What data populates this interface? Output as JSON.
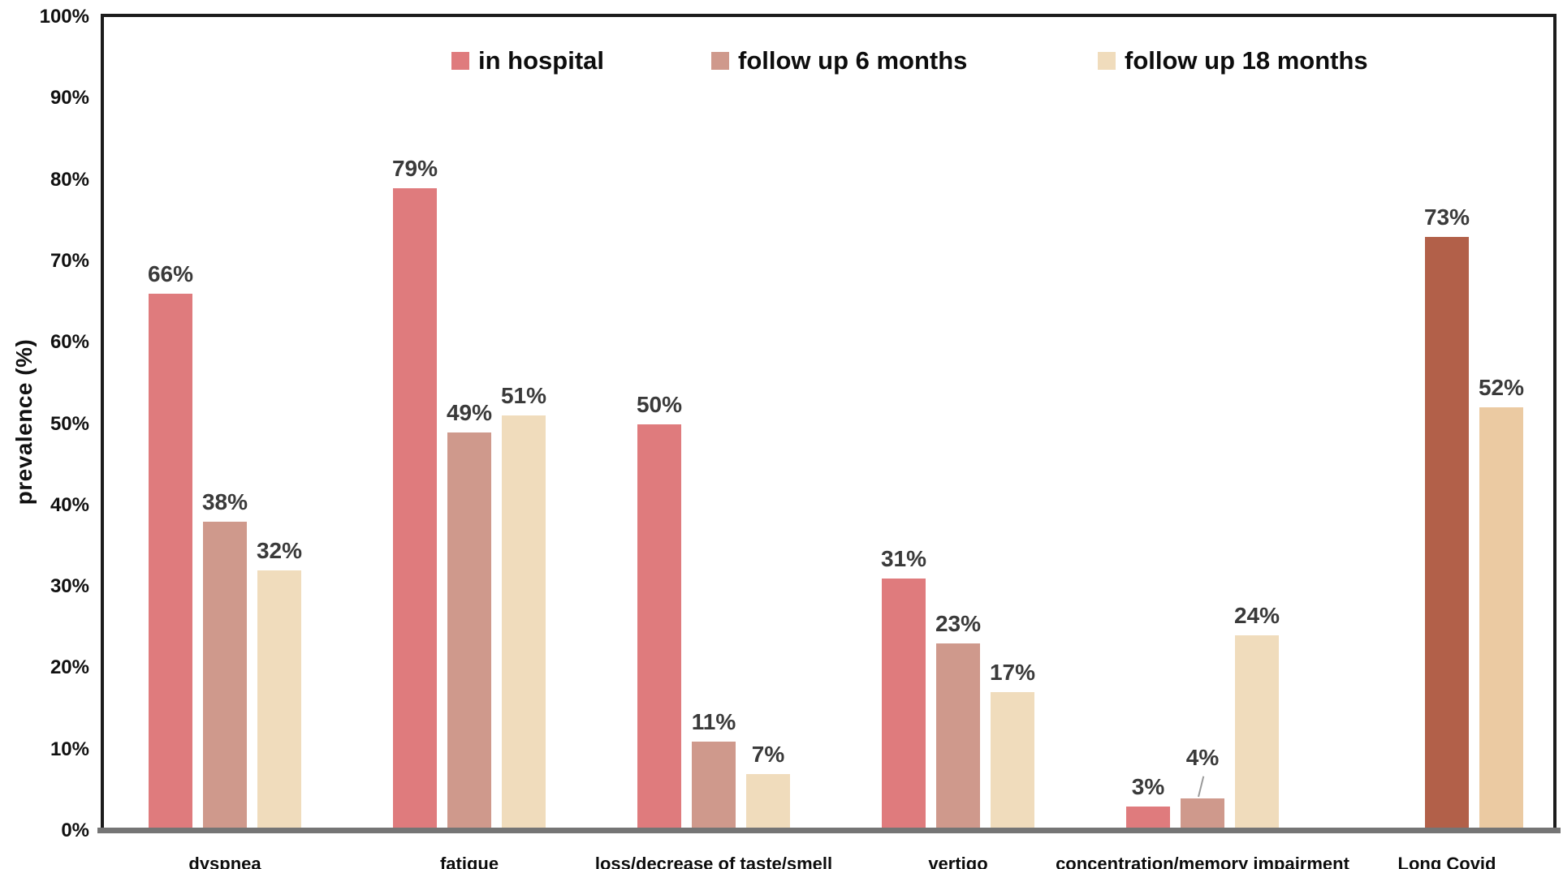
{
  "chart_data": {
    "type": "bar",
    "ylabel": "prevalence (%)",
    "ylim": [
      0,
      100
    ],
    "ytick_step": 10,
    "ytick_labels": [
      "0%",
      "10%",
      "20%",
      "30%",
      "40%",
      "50%",
      "60%",
      "70%",
      "80%",
      "90%",
      "100%"
    ],
    "grid": false,
    "legend_position": "top-center",
    "plot_frame_color": "#1c1c1c",
    "x_axis_color": "#757575",
    "value_label_color": "#3a3a3a",
    "series": [
      {
        "name": "in hospital",
        "color": "#df7b7d"
      },
      {
        "name": "follow up 6 months",
        "color": "#cf998c"
      },
      {
        "name": "follow up 18 months",
        "color": "#f0dcbc"
      }
    ],
    "categories": [
      "dyspnea",
      "fatigue",
      "loss/decrease of taste/smell",
      "vertigo",
      "concentration/memory impairment",
      "Long Covid"
    ],
    "groups": [
      {
        "category": "dyspnea",
        "bars": [
          {
            "series": "in hospital",
            "slot": 0,
            "value": 66,
            "label": "66%"
          },
          {
            "series": "follow up 6 months",
            "slot": 1,
            "value": 38,
            "label": "38%"
          },
          {
            "series": "follow up 18 months",
            "slot": 2,
            "value": 32,
            "label": "32%"
          }
        ]
      },
      {
        "category": "fatigue",
        "bars": [
          {
            "series": "in hospital",
            "slot": 0,
            "value": 79,
            "label": "79%"
          },
          {
            "series": "follow up 6 months",
            "slot": 1,
            "value": 49,
            "label": "49%"
          },
          {
            "series": "follow up 18 months",
            "slot": 2,
            "value": 51,
            "label": "51%"
          }
        ]
      },
      {
        "category": "loss/decrease of taste/smell",
        "bars": [
          {
            "series": "in hospital",
            "slot": 0,
            "value": 50,
            "label": "50%"
          },
          {
            "series": "follow up 6 months",
            "slot": 1,
            "value": 11,
            "label": "11%"
          },
          {
            "series": "follow up 18 months",
            "slot": 2,
            "value": 7,
            "label": "7%"
          }
        ]
      },
      {
        "category": "vertigo",
        "bars": [
          {
            "series": "in hospital",
            "slot": 0,
            "value": 31,
            "label": "31%"
          },
          {
            "series": "follow up 6 months",
            "slot": 1,
            "value": 23,
            "label": "23%"
          },
          {
            "series": "follow up 18 months",
            "slot": 2,
            "value": 17,
            "label": "17%"
          }
        ]
      },
      {
        "category": "concentration/memory impairment",
        "bars": [
          {
            "series": "in hospital",
            "slot": 0,
            "value": 3,
            "label": "3%"
          },
          {
            "series": "follow up 6 months",
            "slot": 1,
            "value": 4,
            "label": "4%",
            "callout": true
          },
          {
            "series": "follow up 18 months",
            "slot": 2,
            "value": 24,
            "label": "24%"
          }
        ]
      },
      {
        "category": "Long Covid",
        "bars": [
          {
            "series": "follow up 6 months",
            "slot": 1,
            "value": 73,
            "label": "73%",
            "color": "#b26049"
          },
          {
            "series": "follow up 18 months",
            "slot": 2,
            "value": 52,
            "label": "52%",
            "color": "#ebcaa2"
          }
        ]
      }
    ]
  }
}
